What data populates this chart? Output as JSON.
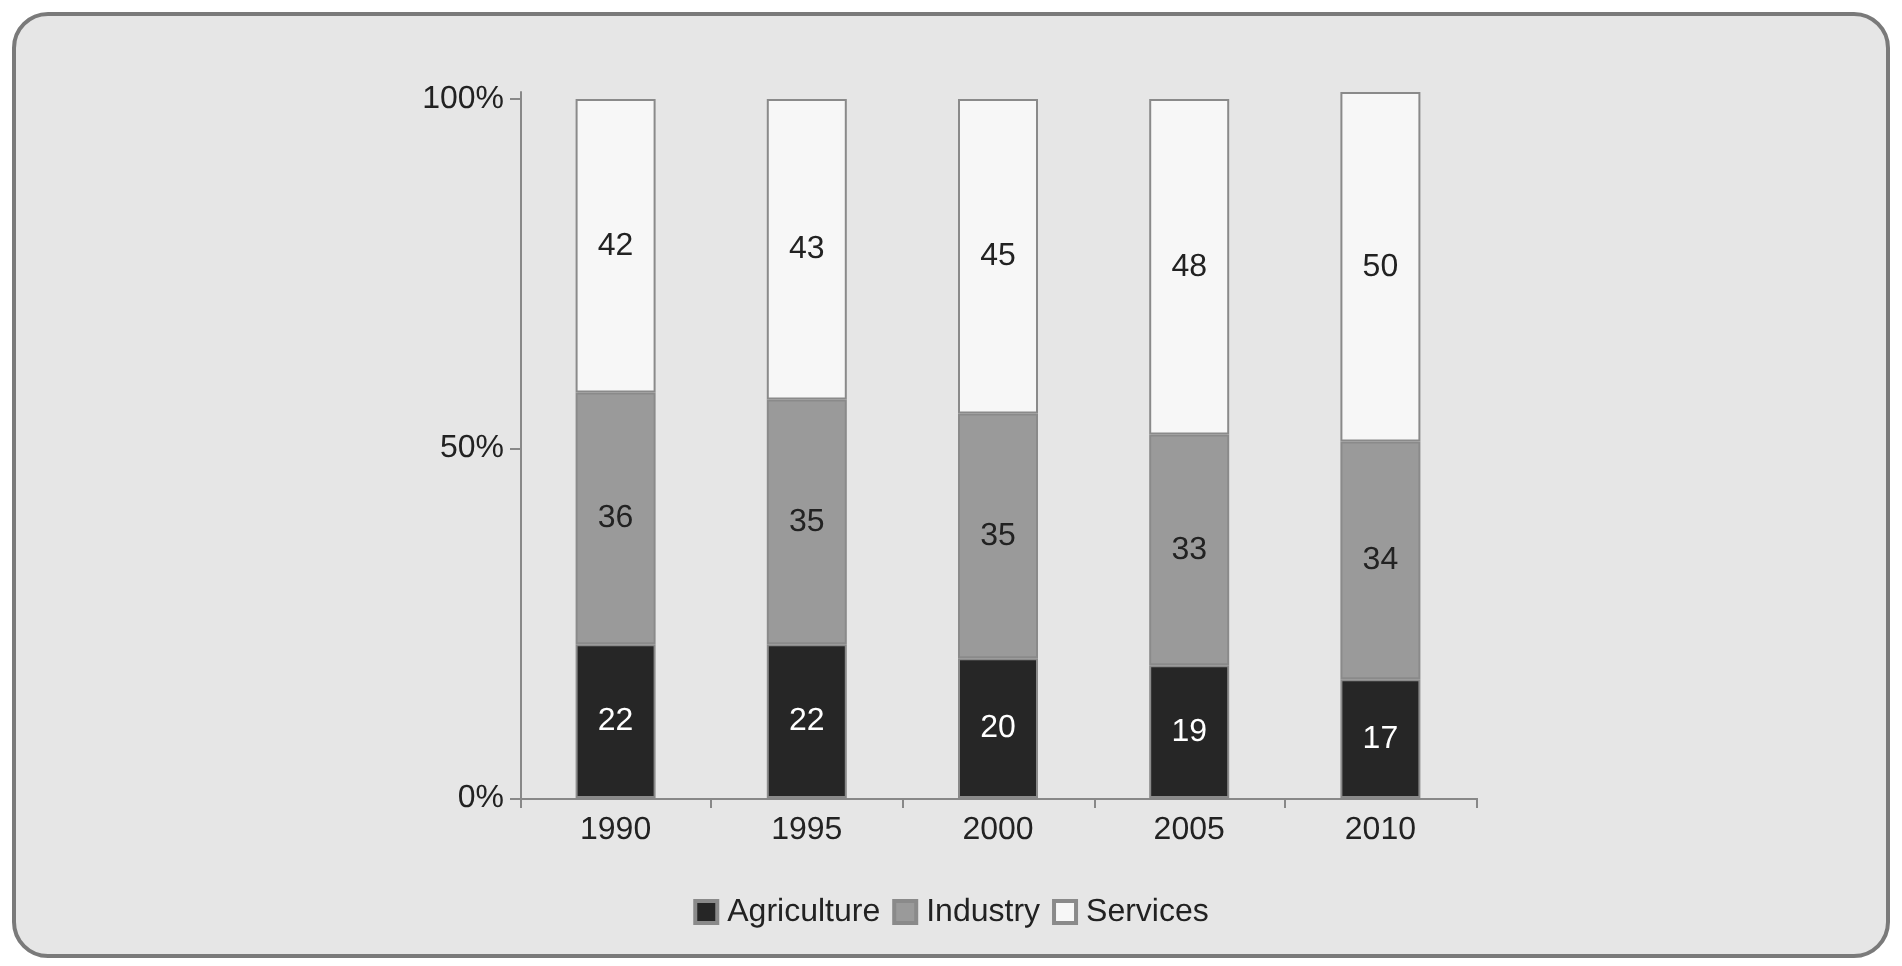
{
  "chart_data": {
    "type": "bar",
    "stacked": true,
    "categories": [
      "1990",
      "1995",
      "2000",
      "2005",
      "2010"
    ],
    "series": [
      {
        "name": "Agriculture",
        "color": "#262626",
        "values": [
          22,
          22,
          20,
          19,
          17
        ]
      },
      {
        "name": "Industry",
        "color": "#9a9a9a",
        "values": [
          36,
          35,
          35,
          33,
          34
        ]
      },
      {
        "name": "Services",
        "color": "#f7f7f7",
        "values": [
          42,
          43,
          45,
          48,
          50
        ]
      }
    ],
    "ylim": [
      0,
      101
    ],
    "yticks": [
      {
        "value": 0,
        "label": "0%"
      },
      {
        "value": 50,
        "label": "50%"
      },
      {
        "value": 100,
        "label": "100%"
      }
    ],
    "data_labels": true,
    "grid": false,
    "legend": "bottom"
  }
}
